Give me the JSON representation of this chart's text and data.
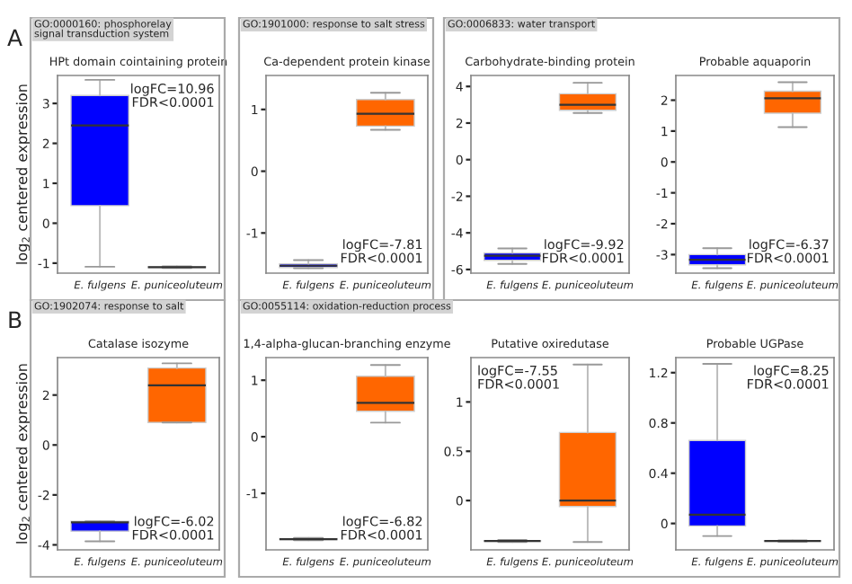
{
  "chart_data": [
    {
      "type": "box",
      "subtitle": "GO:0000160: phosphorelay\nsignal transduction system",
      "title": "HPt domain cointaining protein",
      "ylabel": "log$_{2}$ centered expression",
      "annotations": [
        "A",
        "logFC=10.96\nFDR<0.0001"
      ],
      "categories": [
        "E. fulgens",
        "E. puniceoluteum"
      ],
      "colors": [
        "#0000ff",
        "#ff6600"
      ],
      "ylim": [
        -1.25,
        3.7
      ],
      "yticks": [
        -1,
        0,
        1,
        2,
        3
      ],
      "boxes": [
        {
          "low": -1.09,
          "q1": 0.44,
          "median": 2.45,
          "q3": 3.2,
          "high": 3.59
        },
        {
          "low": -1.12,
          "q1": -1.11,
          "median": -1.1,
          "q3": -1.09,
          "high": -1.08
        }
      ]
    },
    {
      "type": "box",
      "subtitle": "GO:1901000: response to salt stress",
      "title": "Ca-dependent protein kinase",
      "annotations": [
        "logFC=-7.81\nFDR<0.0001"
      ],
      "categories": [
        "E. fulgens",
        "E. puniceoluteum"
      ],
      "colors": [
        "#0000ff",
        "#ff6600"
      ],
      "ylim": [
        -1.65,
        1.55
      ],
      "yticks": [
        -1,
        0,
        1
      ],
      "boxes": [
        {
          "low": -1.57,
          "q1": -1.56,
          "median": -1.53,
          "q3": -1.5,
          "high": -1.44
        },
        {
          "low": 0.67,
          "q1": 0.73,
          "median": 0.93,
          "q3": 1.16,
          "high": 1.27
        }
      ]
    },
    {
      "type": "box",
      "subtitle": "GO:0006833: water transport",
      "title": "Carbohydrate-binding protein",
      "annotations": [
        "logFC=-9.92\nFDR<0.0001"
      ],
      "categories": [
        "E. fulgens",
        "E. puniceoluteum"
      ],
      "colors": [
        "#0000ff",
        "#ff6600"
      ],
      "ylim": [
        -6.2,
        4.6
      ],
      "yticks": [
        -6,
        -4,
        -2,
        0,
        2,
        4
      ],
      "boxes": [
        {
          "low": -5.7,
          "q1": -5.5,
          "median": -5.25,
          "q3": -5.1,
          "high": -4.85
        },
        {
          "low": 2.55,
          "q1": 2.7,
          "median": 3.0,
          "q3": 3.6,
          "high": 4.2
        }
      ]
    },
    {
      "type": "box",
      "title": "Probable aquaporin",
      "annotations": [
        "logFC=-6.37\nFDR<0.0001"
      ],
      "categories": [
        "E. fulgens",
        "E. puniceoluteum"
      ],
      "colors": [
        "#0000ff",
        "#ff6600"
      ],
      "ylim": [
        -3.6,
        2.8
      ],
      "yticks": [
        -3,
        -2,
        -1,
        0,
        1,
        2
      ],
      "boxes": [
        {
          "low": -3.44,
          "q1": -3.33,
          "median": -3.17,
          "q3": -3.0,
          "high": -2.79
        },
        {
          "low": 1.13,
          "q1": 1.58,
          "median": 2.06,
          "q3": 2.29,
          "high": 2.58
        }
      ]
    },
    {
      "type": "box",
      "subtitle": "GO:1902074: response to salt",
      "title": "Catalase isozyme",
      "ylabel": "log$_{2}$ centered expression",
      "annotations": [
        "B",
        "logFC=-6.02\nFDR<0.0001"
      ],
      "categories": [
        "E. fulgens",
        "E. puniceoluteum"
      ],
      "colors": [
        "#0000ff",
        "#ff6600"
      ],
      "ylim": [
        -4.2,
        3.5
      ],
      "yticks": [
        -4,
        -2,
        0,
        2
      ],
      "boxes": [
        {
          "low": -3.86,
          "q1": -3.45,
          "median": -3.1,
          "q3": -3.06,
          "high": -3.06
        },
        {
          "low": 0.9,
          "q1": 0.9,
          "median": 2.39,
          "q3": 3.08,
          "high": 3.27
        }
      ]
    },
    {
      "type": "box",
      "subtitle": "GO:0055114: oxidation-reduction process",
      "title": "1,4-alpha-glucan-branching enzyme",
      "annotations": [
        "logFC=-6.82\nFDR<0.0001"
      ],
      "categories": [
        "E. fulgens",
        "E. puniceoluteum"
      ],
      "colors": [
        "#0000ff",
        "#ff6600"
      ],
      "ylim": [
        -2.0,
        1.4
      ],
      "yticks": [
        -1,
        0,
        1
      ],
      "boxes": [
        {
          "low": -1.83,
          "q1": -1.82,
          "median": -1.81,
          "q3": -1.8,
          "high": -1.79
        },
        {
          "low": 0.25,
          "q1": 0.45,
          "median": 0.6,
          "q3": 1.07,
          "high": 1.27
        }
      ]
    },
    {
      "type": "box",
      "title": "Putative oxiredutase",
      "annotations": [
        "logFC=-7.55\nFDR<0.0001"
      ],
      "categories": [
        "E. fulgens",
        "E. puniceoluteum"
      ],
      "colors": [
        "#0000ff",
        "#ff6600"
      ],
      "ylim": [
        -0.5,
        1.45
      ],
      "yticks": [
        0,
        0.5,
        1
      ],
      "boxes": [
        {
          "low": -0.42,
          "q1": -0.415,
          "median": -0.41,
          "q3": -0.405,
          "high": -0.4
        },
        {
          "low": -0.42,
          "q1": -0.06,
          "median": 0.0,
          "q3": 0.69,
          "high": 1.38
        }
      ]
    },
    {
      "type": "box",
      "title": "Probable UGPase",
      "annotations": [
        "logFC=8.25\nFDR<0.0001"
      ],
      "categories": [
        "E. fulgens",
        "E. puniceoluteum"
      ],
      "colors": [
        "#0000ff",
        "#ff6600"
      ],
      "ylim": [
        -0.21,
        1.32
      ],
      "yticks": [
        0,
        0.4,
        0.8,
        1.2
      ],
      "boxes": [
        {
          "low": -0.1,
          "q1": -0.02,
          "median": 0.07,
          "q3": 0.66,
          "high": 1.27
        },
        {
          "low": -0.145,
          "q1": -0.143,
          "median": -0.14,
          "q3": -0.137,
          "high": -0.135
        }
      ]
    }
  ]
}
